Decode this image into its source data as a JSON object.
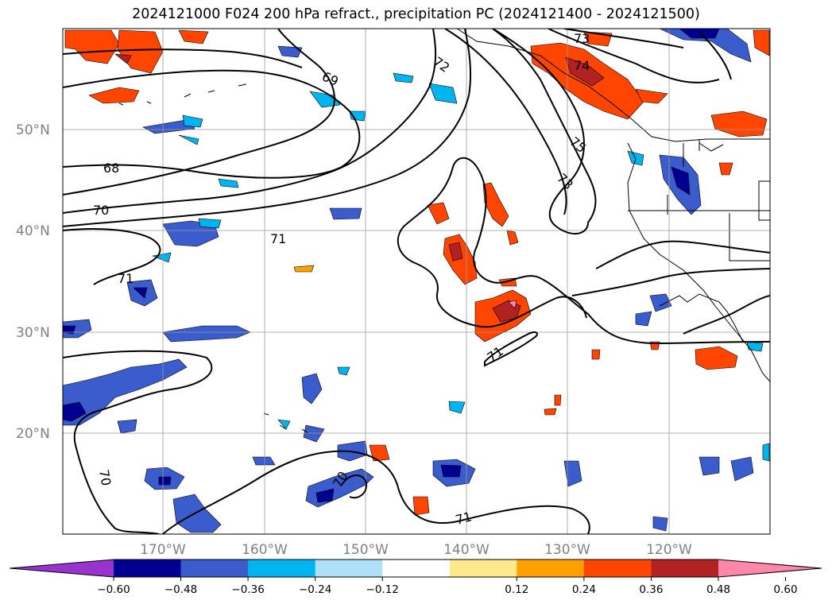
{
  "title": "2024121000 F024 200 hPa refract., precipitation PC (2024121400 - 2024121500)",
  "map": {
    "lat_ticks": [
      "50°N",
      "40°N",
      "30°N",
      "20°N"
    ],
    "lon_ticks": [
      "170°W",
      "160°W",
      "150°W",
      "140°W",
      "130°W",
      "120°W"
    ],
    "contour_labels": [
      "73",
      "74",
      "72",
      "69",
      "75",
      "68",
      "73",
      "70",
      "71",
      "71",
      "71",
      "70",
      "70",
      "71"
    ]
  },
  "colorbar": {
    "labels": [
      "−0.60",
      "−0.48",
      "−0.36",
      "−0.24",
      "−0.12",
      "0.12",
      "0.24",
      "0.36",
      "0.48",
      "0.60"
    ],
    "colors": [
      "#9933cc",
      "#000090",
      "#3a5ccc",
      "#00b4f0",
      "#aee0f8",
      "#ffffff",
      "#fde98a",
      "#ffa000",
      "#ff4500",
      "#b22222",
      "#ff88aa"
    ]
  }
}
